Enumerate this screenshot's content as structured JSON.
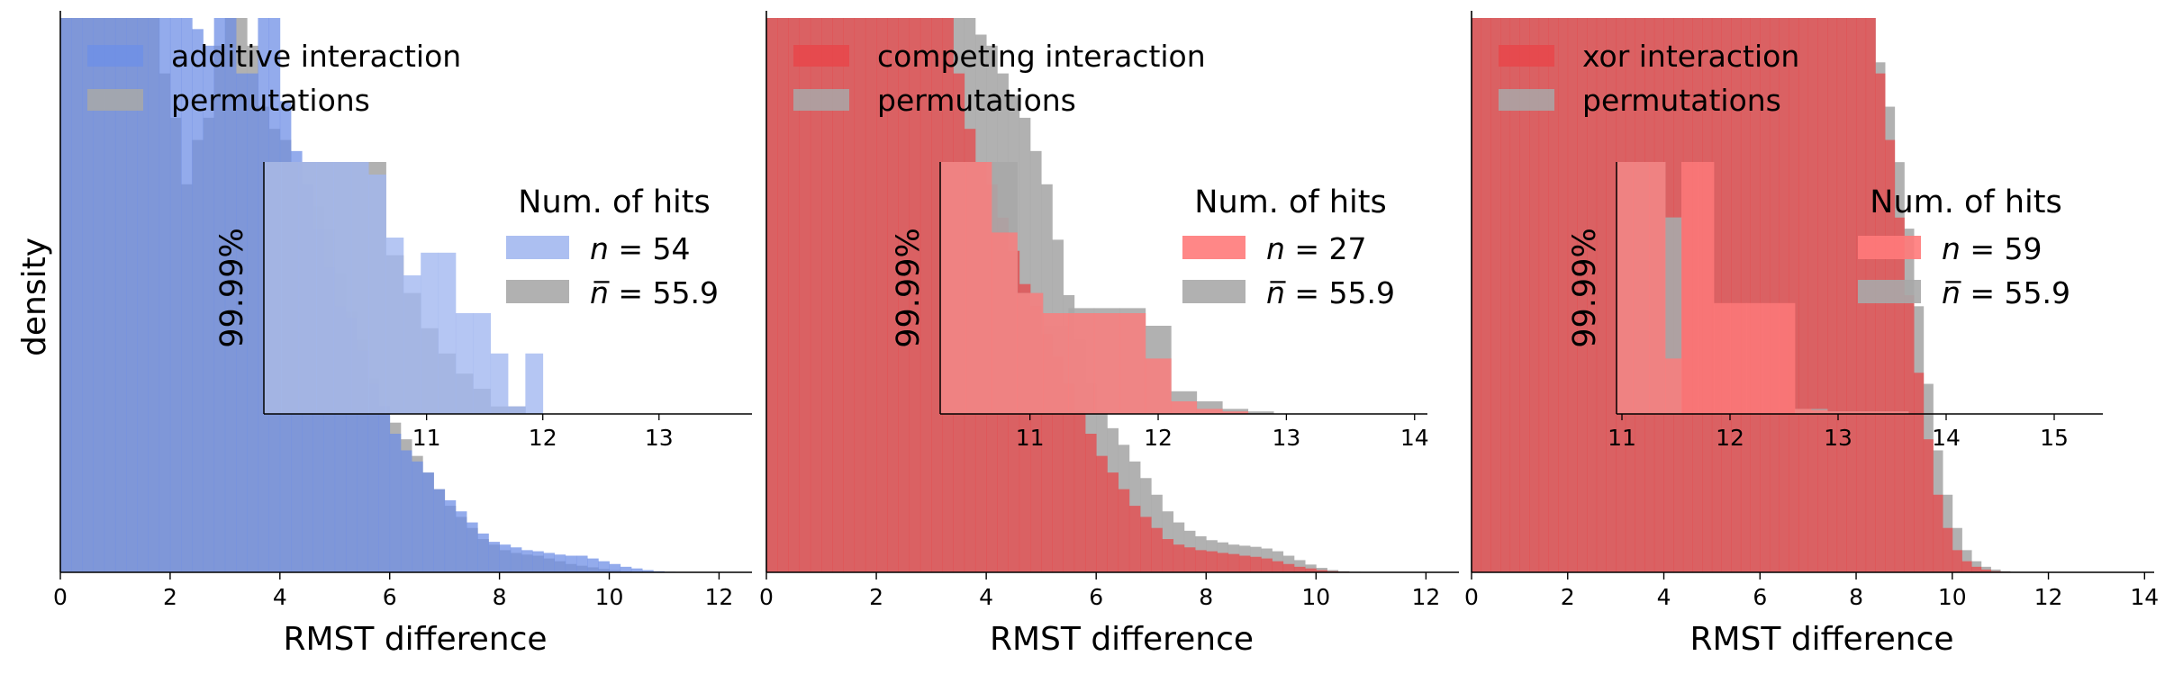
{
  "figure": {
    "ylabel": "density",
    "legend2_title": "Num. of hits",
    "inset_ylabel": "99.99%",
    "colors": {
      "additive": "#6f8fe6",
      "additive_overlay": "#a3b8f0",
      "competing": "#e8474a",
      "competing_overlay": "#ff7a7a",
      "perm": "#a8a8a8",
      "overlap_blue": "#7b8fc7",
      "overlap_red": "#d65a5c"
    }
  },
  "chart_data": [
    {
      "type": "bar",
      "subtype": "histogram",
      "xlabel": "RMST difference",
      "ylabel": "density",
      "xlim": [
        0,
        12.6
      ],
      "xticks": [
        0,
        2,
        4,
        6,
        8,
        10,
        12
      ],
      "legend": [
        "additive interaction",
        "permutations"
      ],
      "legend2_title": "Num. of hits",
      "legend2": [
        {
          "n_label": "n",
          "n_value": "54"
        },
        {
          "n_label": "n̅",
          "n_value": "55.9"
        }
      ],
      "series": [
        {
          "name": "additive interaction",
          "bin_width": 0.2,
          "x_start": 0,
          "values": [
            1.0,
            1.0,
            1.0,
            1.0,
            1.0,
            1.0,
            1.0,
            1.0,
            1.0,
            1.0,
            1.0,
            1.0,
            0.98,
            0.95,
            1.0,
            1.0,
            0.9,
            0.9,
            1.0,
            1.0,
            0.85,
            0.76,
            0.7,
            0.62,
            0.55,
            0.48,
            0.46,
            0.4,
            0.34,
            0.3,
            0.25,
            0.22,
            0.2,
            0.18,
            0.15,
            0.13,
            0.11,
            0.09,
            0.07,
            0.055,
            0.05,
            0.045,
            0.04,
            0.038,
            0.035,
            0.032,
            0.03,
            0.03,
            0.025,
            0.02,
            0.015,
            0.01,
            0.007,
            0.004,
            0.002,
            0.001,
            0.0,
            0.0,
            0.0,
            0.0,
            0.0,
            0.0,
            0.0
          ]
        },
        {
          "name": "permutations",
          "bin_width": 0.2,
          "x_start": 0,
          "values": [
            1.0,
            1.0,
            1.0,
            1.0,
            1.0,
            1.0,
            1.0,
            1.0,
            1.0,
            0.9,
            0.82,
            0.7,
            0.78,
            0.82,
            0.95,
            1.0,
            1.0,
            0.95,
            0.84,
            0.8,
            0.78,
            0.74,
            0.7,
            0.66,
            0.62,
            0.54,
            0.47,
            0.42,
            0.35,
            0.3,
            0.27,
            0.24,
            0.21,
            0.18,
            0.15,
            0.12,
            0.1,
            0.08,
            0.06,
            0.05,
            0.04,
            0.035,
            0.032,
            0.03,
            0.025,
            0.02,
            0.015,
            0.012,
            0.009,
            0.006,
            0.004,
            0.002,
            0.001,
            0.0,
            0.0,
            0.0,
            0.0,
            0.0,
            0.0,
            0.0,
            0.0,
            0.0,
            0.0
          ]
        }
      ],
      "inset": {
        "xlim": [
          9.6,
          13.8
        ],
        "xticks": [
          11,
          12,
          13
        ],
        "bin_width": 0.15,
        "x_start": 9.6,
        "series": [
          {
            "name": "additive interaction",
            "values": [
              1.0,
              1.0,
              1.0,
              1.0,
              1.0,
              1.0,
              0.95,
              0.7,
              0.55,
              0.64,
              0.64,
              0.4,
              0.4,
              0.24,
              0.03,
              0.24,
              0.0,
              0.0,
              0.0,
              0.0,
              0.0,
              0.0,
              0.0,
              0.0,
              0.0,
              0.0,
              0.0,
              0.0
            ]
          },
          {
            "name": "permutations",
            "values": [
              1.0,
              1.0,
              1.0,
              1.0,
              1.0,
              1.0,
              1.0,
              0.63,
              0.48,
              0.34,
              0.24,
              0.16,
              0.1,
              0.03,
              0.03,
              0.0,
              0.0,
              0.0,
              0.0,
              0.0,
              0.0,
              0.0,
              0.0,
              0.0,
              0.0,
              0.0,
              0.0,
              0.0
            ]
          }
        ]
      }
    },
    {
      "type": "bar",
      "subtype": "histogram",
      "xlabel": "RMST difference",
      "xlim": [
        0,
        12.6
      ],
      "xticks": [
        0,
        2,
        4,
        6,
        8,
        10,
        12
      ],
      "legend": [
        "competing interaction",
        "permutations"
      ],
      "legend2_title": "Num. of hits",
      "legend2": [
        {
          "n_label": "n",
          "n_value": "27"
        },
        {
          "n_label": "n̅",
          "n_value": "55.9"
        }
      ],
      "series": [
        {
          "name": "competing interaction",
          "bin_width": 0.2,
          "x_start": 0,
          "values": [
            1.0,
            1.0,
            1.0,
            1.0,
            1.0,
            1.0,
            1.0,
            1.0,
            1.0,
            1.0,
            1.0,
            1.0,
            1.0,
            1.0,
            1.0,
            1.0,
            1.0,
            0.9,
            0.8,
            0.74,
            0.7,
            0.64,
            0.58,
            0.52,
            0.48,
            0.43,
            0.39,
            0.34,
            0.29,
            0.25,
            0.21,
            0.18,
            0.15,
            0.12,
            0.1,
            0.08,
            0.06,
            0.05,
            0.045,
            0.04,
            0.038,
            0.035,
            0.033,
            0.03,
            0.028,
            0.025,
            0.02,
            0.015,
            0.01,
            0.007,
            0.004,
            0.002,
            0.001,
            0.0,
            0.0,
            0.0,
            0.0,
            0.0,
            0.0,
            0.0,
            0.0,
            0.0,
            0.0
          ]
        },
        {
          "name": "permutations",
          "bin_width": 0.2,
          "x_start": 0,
          "values": [
            1.0,
            1.0,
            1.0,
            1.0,
            1.0,
            1.0,
            1.0,
            1.0,
            1.0,
            1.0,
            1.0,
            1.0,
            1.0,
            1.0,
            1.0,
            1.0,
            1.0,
            1.0,
            1.0,
            0.97,
            0.95,
            0.9,
            0.86,
            0.82,
            0.76,
            0.7,
            0.6,
            0.5,
            0.42,
            0.34,
            0.29,
            0.26,
            0.23,
            0.2,
            0.17,
            0.14,
            0.11,
            0.09,
            0.075,
            0.065,
            0.058,
            0.054,
            0.05,
            0.048,
            0.046,
            0.043,
            0.038,
            0.03,
            0.022,
            0.014,
            0.008,
            0.004,
            0.002,
            0.001,
            0.0,
            0.0,
            0.0,
            0.0,
            0.0,
            0.0,
            0.0,
            0.0,
            0.0
          ]
        }
      ],
      "inset": {
        "xlim": [
          10.3,
          14.1
        ],
        "xticks": [
          11,
          12,
          13,
          14
        ],
        "bin_width": 0.2,
        "x_start": 10.3,
        "series": [
          {
            "name": "competing interaction",
            "values": [
              1.0,
              1.0,
              0.72,
              0.48,
              0.4,
              0.4,
              0.4,
              0.4,
              0.22,
              0.05,
              0.02,
              0.01,
              0.0,
              0.0,
              0.0,
              0.0,
              0.0,
              0.0,
              0.0,
              0.0
            ]
          },
          {
            "name": "permutations",
            "values": [
              1.0,
              1.0,
              1.0,
              0.48,
              0.35,
              0.42,
              0.42,
              0.42,
              0.35,
              0.09,
              0.05,
              0.02,
              0.01,
              0.0,
              0.0,
              0.0,
              0.0,
              0.0,
              0.0,
              0.0
            ]
          }
        ]
      }
    },
    {
      "type": "bar",
      "subtype": "histogram",
      "xlabel": "RMST difference",
      "xlim": [
        0,
        14.2
      ],
      "xticks": [
        0,
        2,
        4,
        6,
        8,
        10,
        12,
        14
      ],
      "legend": [
        "xor interaction",
        "permutations"
      ],
      "legend2_title": "Num. of hits",
      "legend2": [
        {
          "n_label": "n",
          "n_value": "59"
        },
        {
          "n_label": "n̅",
          "n_value": "55.9"
        }
      ],
      "series": [
        {
          "name": "xor interaction",
          "bin_width": 0.2,
          "x_start": 0,
          "values": [
            1.0,
            1.0,
            1.0,
            1.0,
            1.0,
            1.0,
            1.0,
            1.0,
            1.0,
            1.0,
            1.0,
            1.0,
            1.0,
            1.0,
            1.0,
            1.0,
            1.0,
            1.0,
            1.0,
            1.0,
            1.0,
            1.0,
            1.0,
            1.0,
            1.0,
            1.0,
            1.0,
            1.0,
            1.0,
            1.0,
            1.0,
            1.0,
            1.0,
            1.0,
            1.0,
            1.0,
            1.0,
            1.0,
            1.0,
            1.0,
            1.0,
            1.0,
            0.9,
            0.78,
            0.64,
            0.5,
            0.36,
            0.24,
            0.14,
            0.08,
            0.04,
            0.02,
            0.01,
            0.005,
            0.002,
            0.001,
            0.0,
            0.0,
            0.0,
            0.0,
            0.0,
            0.0,
            0.0,
            0.0,
            0.0,
            0.0,
            0.0,
            0.0,
            0.0,
            0.0,
            0.0
          ]
        },
        {
          "name": "permutations",
          "bin_width": 0.2,
          "x_start": 0,
          "values": [
            1.0,
            1.0,
            1.0,
            1.0,
            1.0,
            1.0,
            1.0,
            1.0,
            1.0,
            1.0,
            1.0,
            1.0,
            1.0,
            1.0,
            1.0,
            1.0,
            1.0,
            1.0,
            1.0,
            1.0,
            1.0,
            1.0,
            1.0,
            1.0,
            1.0,
            1.0,
            1.0,
            1.0,
            1.0,
            1.0,
            1.0,
            1.0,
            1.0,
            1.0,
            1.0,
            1.0,
            1.0,
            1.0,
            1.0,
            1.0,
            1.0,
            1.0,
            0.92,
            0.84,
            0.74,
            0.62,
            0.48,
            0.34,
            0.22,
            0.14,
            0.08,
            0.04,
            0.02,
            0.01,
            0.005,
            0.002,
            0.001,
            0.0,
            0.0,
            0.0,
            0.0,
            0.0,
            0.0,
            0.0,
            0.0,
            0.0,
            0.0,
            0.0,
            0.0,
            0.0,
            0.0
          ]
        }
      ],
      "inset": {
        "xlim": [
          10.95,
          15.45
        ],
        "xticks": [
          11,
          12,
          13,
          14,
          15
        ],
        "bin_width": 0.15,
        "x_start": 10.95,
        "series": [
          {
            "name": "xor interaction",
            "values": [
              1.0,
              1.0,
              1.0,
              0.22,
              1.0,
              1.0,
              0.44,
              0.44,
              0.44,
              0.44,
              0.44,
              0.02,
              0.015,
              0.01,
              0.01,
              0.01,
              0.01,
              0.01,
              0.0,
              0.0,
              0.0,
              0.0,
              0.0,
              0.0,
              0.0,
              0.0,
              0.0,
              0.0,
              0.0,
              0.0
            ]
          },
          {
            "name": "permutations",
            "values": [
              1.0,
              1.0,
              1.0,
              0.78,
              0.0,
              0.0,
              0.0,
              0.0,
              0.0,
              0.0,
              0.0,
              0.02,
              0.02,
              0.01,
              0.01,
              0.01,
              0.01,
              0.01,
              0.0,
              0.0,
              0.0,
              0.0,
              0.0,
              0.0,
              0.0,
              0.0,
              0.0,
              0.0,
              0.0,
              0.0
            ]
          }
        ]
      }
    }
  ]
}
